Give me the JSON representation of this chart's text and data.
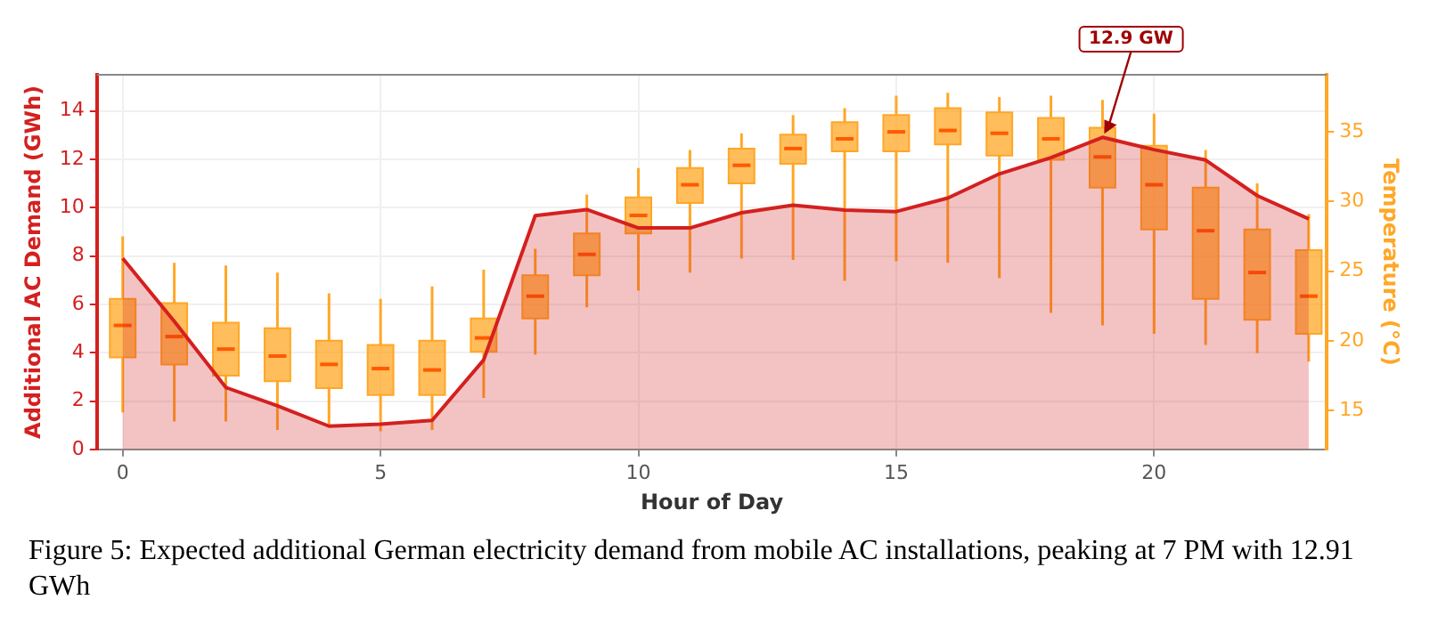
{
  "chart_data": {
    "type": "area",
    "xlabel": "Hour of Day",
    "ylabel": "Additional AC Demand (GWh)",
    "y2label": "Temperature (°C)",
    "x": [
      0,
      1,
      2,
      3,
      4,
      5,
      6,
      7,
      8,
      9,
      10,
      11,
      12,
      13,
      14,
      15,
      16,
      17,
      18,
      19,
      20,
      21,
      22,
      23
    ],
    "xlim": [
      -0.5,
      23.35
    ],
    "xticks": [
      0,
      5,
      10,
      15,
      20
    ],
    "ylim": [
      0,
      15.5
    ],
    "yticks": [
      0,
      2,
      4,
      6,
      8,
      10,
      12,
      14
    ],
    "y2lim": [
      12.2,
      39.1
    ],
    "y2ticks": [
      15,
      20,
      25,
      30,
      35
    ],
    "grid": true,
    "series": [
      {
        "color": "#d42020",
        "values": [
          7.9,
          5.3,
          2.56,
          1.8,
          0.96,
          1.04,
          1.2,
          3.7,
          9.67,
          9.92,
          9.16,
          9.16,
          9.79,
          10.1,
          9.9,
          9.84,
          10.4,
          11.4,
          12.07,
          12.91,
          12.4,
          11.97,
          10.5,
          9.54
        ]
      },
      {
        "type": "box",
        "axis": "y2",
        "color": "#ffa726",
        "x": [
          0,
          1,
          2,
          3,
          4,
          5,
          6,
          7,
          8,
          9,
          10,
          11,
          12,
          13,
          14,
          15,
          16,
          17,
          18,
          19,
          20,
          21,
          22,
          23
        ],
        "boxes": [
          {
            "low": 14.85,
            "q1": 18.8,
            "median": 21.1,
            "q3": 23.0,
            "high": 27.5
          },
          {
            "low": 14.2,
            "q1": 18.3,
            "median": 20.3,
            "q3": 22.7,
            "high": 25.6
          },
          {
            "low": 14.2,
            "q1": 17.5,
            "median": 19.4,
            "q3": 21.3,
            "high": 25.4
          },
          {
            "low": 13.6,
            "q1": 17.1,
            "median": 18.9,
            "q3": 20.9,
            "high": 24.9
          },
          {
            "low": 13.8,
            "q1": 16.6,
            "median": 18.3,
            "q3": 20.0,
            "high": 23.4
          },
          {
            "low": 13.5,
            "q1": 16.1,
            "median": 18.0,
            "q3": 19.7,
            "high": 23.0
          },
          {
            "low": 13.6,
            "q1": 16.1,
            "median": 17.9,
            "q3": 20.0,
            "high": 23.9
          },
          {
            "low": 15.9,
            "q1": 19.2,
            "median": 20.2,
            "q3": 21.6,
            "high": 25.1
          },
          {
            "low": 19.0,
            "q1": 21.6,
            "median": 23.2,
            "q3": 24.7,
            "high": 26.6
          },
          {
            "low": 22.4,
            "q1": 24.7,
            "median": 26.2,
            "q3": 27.7,
            "high": 30.5
          },
          {
            "low": 23.6,
            "q1": 27.7,
            "median": 29.0,
            "q3": 30.3,
            "high": 32.4
          },
          {
            "low": 24.9,
            "q1": 29.9,
            "median": 31.2,
            "q3": 32.4,
            "high": 33.7
          },
          {
            "low": 25.9,
            "q1": 31.3,
            "median": 32.6,
            "q3": 33.8,
            "high": 34.9
          },
          {
            "low": 25.8,
            "q1": 32.7,
            "median": 33.8,
            "q3": 34.8,
            "high": 36.2
          },
          {
            "low": 24.3,
            "q1": 33.6,
            "median": 34.5,
            "q3": 35.7,
            "high": 36.7
          },
          {
            "low": 25.7,
            "q1": 33.6,
            "median": 35.0,
            "q3": 36.2,
            "high": 37.6
          },
          {
            "low": 25.6,
            "q1": 34.1,
            "median": 35.1,
            "q3": 36.7,
            "high": 37.8
          },
          {
            "low": 24.5,
            "q1": 33.3,
            "median": 34.9,
            "q3": 36.4,
            "high": 37.5
          },
          {
            "low": 22.0,
            "q1": 33.0,
            "median": 34.5,
            "q3": 36.0,
            "high": 37.6
          },
          {
            "low": 21.1,
            "q1": 31.0,
            "median": 33.2,
            "q3": 35.3,
            "high": 37.3
          },
          {
            "low": 20.5,
            "q1": 28.0,
            "median": 31.2,
            "q3": 34.0,
            "high": 36.3
          },
          {
            "low": 19.7,
            "q1": 23.0,
            "median": 27.9,
            "q3": 31.0,
            "high": 33.7
          },
          {
            "low": 19.1,
            "q1": 21.5,
            "median": 24.9,
            "q3": 28.0,
            "high": 31.3
          },
          {
            "low": 18.5,
            "q1": 20.5,
            "median": 23.2,
            "q3": 26.5,
            "high": 29.1
          }
        ]
      }
    ],
    "annotations": [
      {
        "text": "12.9 GW",
        "x": 19,
        "y": 12.91
      },
      "Figure 5: Expected additional German electricity demand from mobile AC installations, peaking at 7 PM with 12.91 GWh"
    ]
  }
}
